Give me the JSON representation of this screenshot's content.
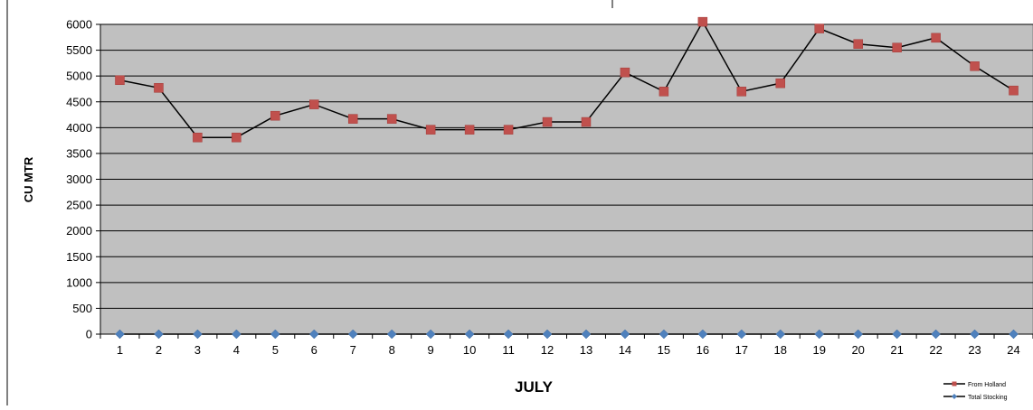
{
  "chart_data": {
    "type": "line",
    "title": "",
    "xlabel": "JULY",
    "ylabel": "CU MTR",
    "categories": [
      "1",
      "2",
      "3",
      "4",
      "5",
      "6",
      "7",
      "8",
      "9",
      "10",
      "11",
      "12",
      "13",
      "14",
      "15",
      "16",
      "17",
      "18",
      "19",
      "20",
      "21",
      "22",
      "23",
      "24"
    ],
    "ylim": [
      0,
      6000
    ],
    "yticks": [
      "0",
      "500",
      "1000",
      "1500",
      "2000",
      "2500",
      "3000",
      "3500",
      "4000",
      "4500",
      "5000",
      "5500",
      "6000"
    ],
    "grid": true,
    "legend_position": "bottom-right",
    "plot_background": "#c0c0c0",
    "series": [
      {
        "name": "From Holland",
        "marker": "square",
        "marker_color": "#c0504d",
        "line_color": "#000000",
        "values": [
          4920,
          4770,
          3810,
          3810,
          4230,
          4450,
          4170,
          4170,
          3960,
          3960,
          3960,
          4110,
          4110,
          5070,
          4700,
          6050,
          4700,
          4860,
          5920,
          5620,
          5550,
          5740,
          5190,
          4720
        ]
      },
      {
        "name": "Total Stocking",
        "marker": "diamond",
        "marker_color": "#4f81bd",
        "line_color": "#000000",
        "values": [
          0,
          0,
          0,
          0,
          0,
          0,
          0,
          0,
          0,
          0,
          0,
          0,
          0,
          0,
          0,
          0,
          0,
          0,
          0,
          0,
          0,
          0,
          0,
          0
        ]
      }
    ]
  }
}
